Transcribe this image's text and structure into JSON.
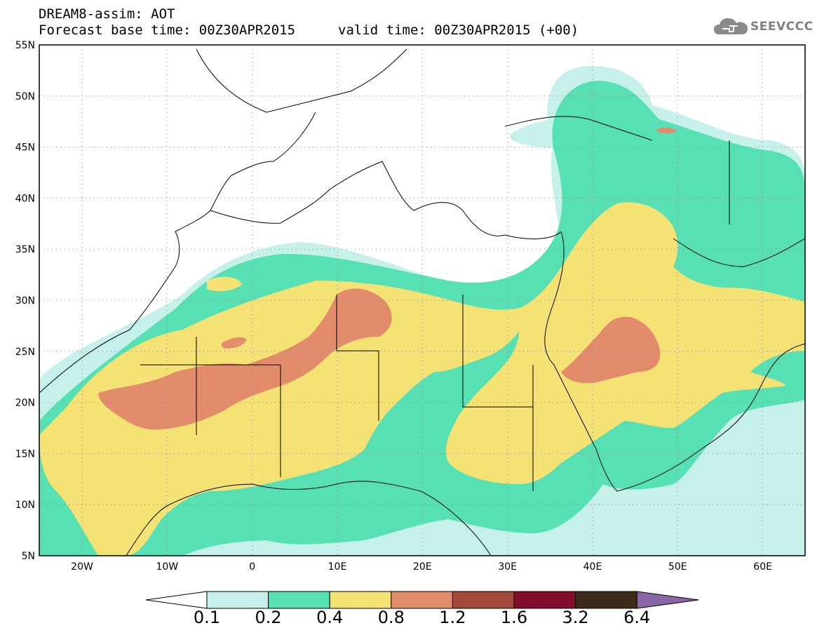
{
  "title": {
    "line1": "DREAM8-assim: AOT",
    "base_time": "Forecast base time: 00Z30APR2015",
    "valid_time": "valid time: 00Z30APR2015 (+00)"
  },
  "logo": {
    "text": "SEEVCCC",
    "icon": "cloud-icon"
  },
  "map": {
    "lat_labels": [
      "55N",
      "50N",
      "45N",
      "40N",
      "35N",
      "30N",
      "25N",
      "20N",
      "15N",
      "10N",
      "5N"
    ],
    "lon_labels": [
      "20W",
      "10W",
      "0",
      "10E",
      "20E",
      "30E",
      "40E",
      "50E",
      "60E"
    ]
  },
  "colorbar": {
    "labels": [
      "0.1",
      "0.2",
      "0.4",
      "0.8",
      "1.2",
      "1.6",
      "3.2",
      "6.4"
    ],
    "colors": [
      "#ffffff",
      "#c6f1ea",
      "#57e0b4",
      "#f5e274",
      "#e38c6c",
      "#a5493d",
      "#830b2b",
      "#3e2a18",
      "#8a66a8"
    ]
  },
  "colors": {
    "level1": "#c6f1ea",
    "level2": "#57e0b4",
    "level3": "#f5e274",
    "level4": "#e38c6c"
  }
}
